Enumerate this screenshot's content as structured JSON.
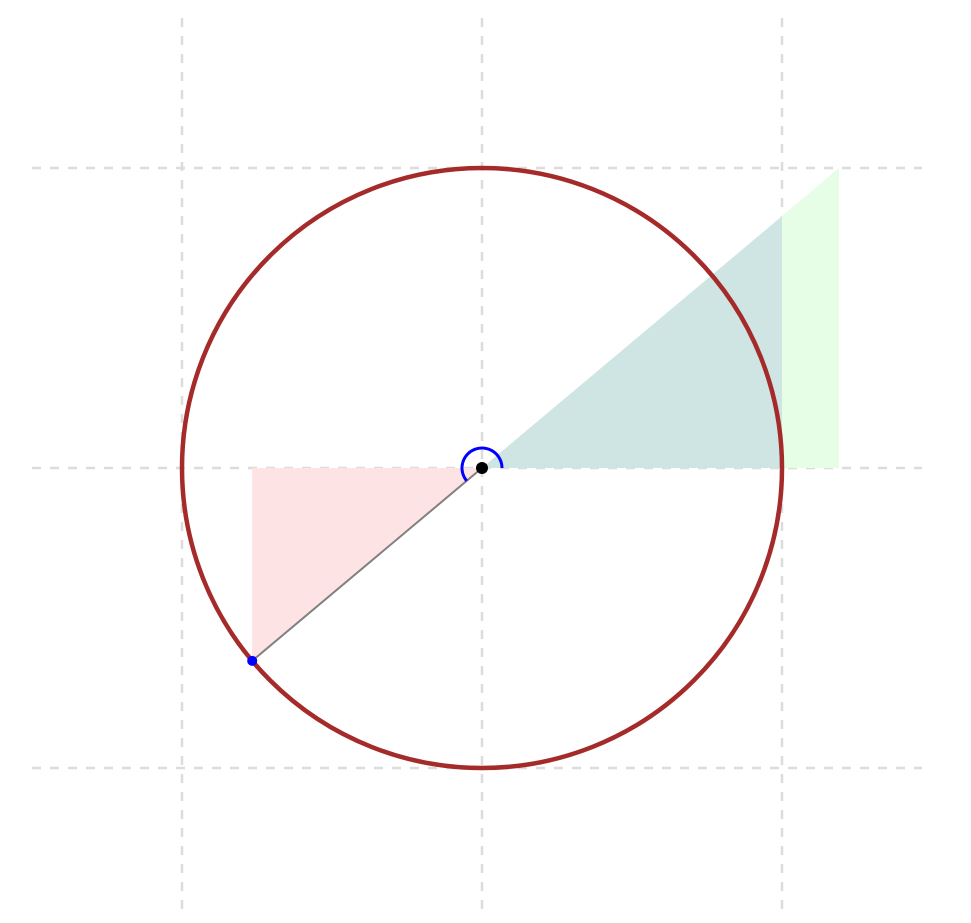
{
  "diagram": {
    "type": "unit-circle-angle",
    "grid": {
      "visible": true,
      "style": "dashed",
      "color": "#dcdcdc",
      "lines_x": [
        -1,
        0,
        1
      ],
      "lines_y": [
        -1,
        0,
        1
      ]
    },
    "circle": {
      "center": [
        0,
        0
      ],
      "radius": 1,
      "color": "#a52a2a"
    },
    "angle": {
      "degrees": 220,
      "arc_color": "#0000ff",
      "ray_color": "#808080",
      "point_color": "#0000ff",
      "center_point_color": "#000000"
    },
    "triangles": [
      {
        "name": "reference-triangle",
        "vertices": [
          [
            0,
            0
          ],
          [
            -0.766,
            0
          ],
          [
            -0.766,
            -0.643
          ]
        ],
        "fill": "#fde3e3"
      },
      {
        "name": "tangent-triangle",
        "vertices": [
          [
            0,
            0
          ],
          [
            1.19,
            0
          ],
          [
            1.19,
            1
          ]
        ],
        "fill": "#e6fde6"
      },
      {
        "name": "overlap-triangle",
        "vertices": [
          [
            0,
            0
          ],
          [
            1,
            0
          ],
          [
            1,
            0.839
          ]
        ],
        "fill": "#cfe5e3"
      }
    ]
  }
}
